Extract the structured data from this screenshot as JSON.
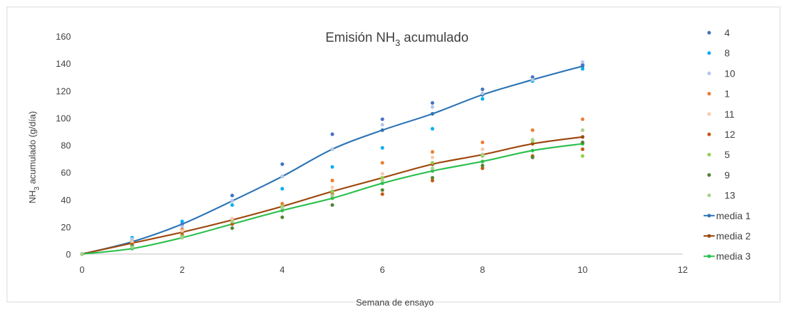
{
  "chart_data": {
    "type": "scatter",
    "title": "Emisión NH",
    "title_sub": "3",
    "title_suffix": " acumulado",
    "xlabel": "Semana de ensayo",
    "ylabel_prefix": "NH",
    "ylabel_sub": "3",
    "ylabel_suffix": "  acumulado (g/día)",
    "xlim": [
      0,
      12
    ],
    "ylim": [
      0,
      160
    ],
    "xticks": [
      "0",
      "2",
      "4",
      "6",
      "8",
      "10",
      "12"
    ],
    "yticks": [
      "0",
      "20",
      "40",
      "60",
      "80",
      "100",
      "120",
      "140",
      "160"
    ],
    "grid": false,
    "legend_position": "right",
    "x": [
      0,
      1,
      2,
      3,
      4,
      5,
      6,
      7,
      8,
      9,
      10
    ],
    "series": [
      {
        "name": "4",
        "kind": "points",
        "color": "#4472c4",
        "values": [
          0,
          10,
          22,
          43,
          66,
          88,
          99,
          111,
          121,
          130,
          139
        ]
      },
      {
        "name": "8",
        "kind": "points",
        "color": "#00b0f0",
        "values": [
          0,
          12,
          24,
          36,
          48,
          64,
          78,
          92,
          114,
          127,
          136
        ]
      },
      {
        "name": "10",
        "kind": "points",
        "color": "#b4c7e7",
        "values": [
          0,
          11,
          20,
          39,
          57,
          77,
          95,
          108,
          118,
          128,
          141
        ]
      },
      {
        "name": "1",
        "kind": "points",
        "color": "#ed7d31",
        "values": [
          0,
          8,
          18,
          25,
          37,
          54,
          67,
          75,
          82,
          91,
          99
        ]
      },
      {
        "name": "11",
        "kind": "points",
        "color": "#f8cbad",
        "values": [
          0,
          9,
          17,
          26,
          35,
          49,
          59,
          71,
          77,
          84,
          91
        ]
      },
      {
        "name": "12",
        "kind": "points",
        "color": "#c55a11",
        "values": [
          0,
          7,
          14,
          22,
          34,
          44,
          44,
          54,
          63,
          72,
          77
        ]
      },
      {
        "name": "5",
        "kind": "points",
        "color": "#92d050",
        "values": [
          0,
          6,
          13,
          24,
          35,
          46,
          56,
          67,
          72,
          83,
          72
        ]
      },
      {
        "name": "9",
        "kind": "points",
        "color": "#548235",
        "values": [
          0,
          6,
          12,
          19,
          27,
          36,
          47,
          56,
          65,
          71,
          82
        ]
      },
      {
        "name": "13",
        "kind": "points",
        "color": "#a9d18e",
        "values": [
          0,
          5,
          12,
          24,
          34,
          43,
          54,
          63,
          73,
          84,
          91
        ]
      },
      {
        "name": "media 1",
        "kind": "line",
        "color": "#2e75b6",
        "values": [
          0,
          9,
          22,
          39,
          57,
          77,
          91,
          103,
          117,
          128,
          138
        ]
      },
      {
        "name": "media 2",
        "kind": "line",
        "color": "#9e480e",
        "values": [
          0,
          8,
          16,
          25,
          35,
          46,
          56,
          66,
          73,
          81,
          86
        ]
      },
      {
        "name": "media 3",
        "kind": "line",
        "color": "#2bc04e",
        "values": [
          0,
          4,
          12,
          22,
          32,
          41,
          52,
          61,
          68,
          76,
          81
        ]
      }
    ]
  }
}
